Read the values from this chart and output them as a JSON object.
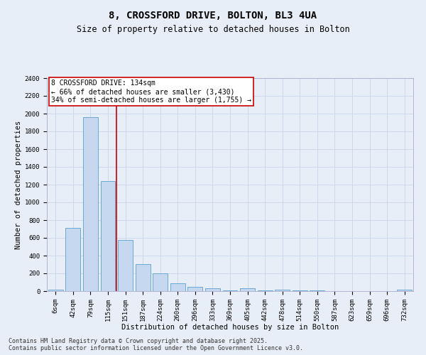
{
  "title_line1": "8, CROSSFORD DRIVE, BOLTON, BL3 4UA",
  "title_line2": "Size of property relative to detached houses in Bolton",
  "xlabel": "Distribution of detached houses by size in Bolton",
  "ylabel": "Number of detached properties",
  "categories": [
    "6sqm",
    "42sqm",
    "79sqm",
    "115sqm",
    "151sqm",
    "187sqm",
    "224sqm",
    "260sqm",
    "296sqm",
    "333sqm",
    "369sqm",
    "405sqm",
    "442sqm",
    "478sqm",
    "514sqm",
    "550sqm",
    "587sqm",
    "623sqm",
    "659sqm",
    "696sqm",
    "732sqm"
  ],
  "values": [
    15,
    715,
    1960,
    1240,
    580,
    305,
    200,
    85,
    50,
    30,
    5,
    35,
    10,
    15,
    5,
    5,
    0,
    0,
    0,
    0,
    15
  ],
  "bar_color": "#c5d8f0",
  "bar_edge_color": "#6aaad4",
  "vline_x": 3.5,
  "vline_color": "#cc0000",
  "annotation_text": "8 CROSSFORD DRIVE: 134sqm\n← 66% of detached houses are smaller (3,430)\n34% of semi-detached houses are larger (1,755) →",
  "annotation_box_color": "#ffffff",
  "annotation_box_edge_color": "#cc0000",
  "ylim": [
    0,
    2400
  ],
  "yticks": [
    0,
    200,
    400,
    600,
    800,
    1000,
    1200,
    1400,
    1600,
    1800,
    2000,
    2200,
    2400
  ],
  "grid_color": "#c8d4e8",
  "background_color": "#e8eef8",
  "footer_line1": "Contains HM Land Registry data © Crown copyright and database right 2025.",
  "footer_line2": "Contains public sector information licensed under the Open Government Licence v3.0.",
  "title_fontsize": 10,
  "subtitle_fontsize": 8.5,
  "axis_label_fontsize": 7.5,
  "tick_fontsize": 6.5,
  "annotation_fontsize": 7,
  "footer_fontsize": 6
}
